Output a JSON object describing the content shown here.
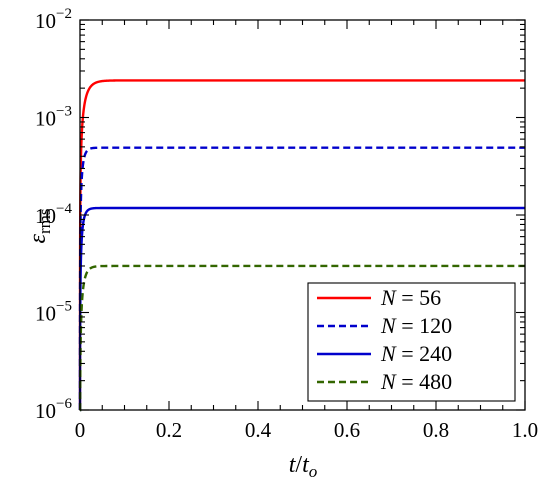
{
  "chart_data": {
    "type": "line",
    "title": "",
    "xlabel": {
      "main": "t",
      "slash": "/",
      "denom": "t",
      "denom_sub": "o"
    },
    "ylabel": {
      "main": "ε",
      "sub": "rms"
    },
    "xlim": [
      0,
      1.0
    ],
    "ylim": [
      1e-06,
      0.01
    ],
    "yscale": "log",
    "grid": false,
    "legend_position": "bottom-right",
    "x_ticks": [
      "0",
      "0.2",
      "0.4",
      "0.6",
      "0.8",
      "1.0"
    ],
    "y_ticks": [
      {
        "base": "10",
        "exp": "−6"
      },
      {
        "base": "10",
        "exp": "−5"
      },
      {
        "base": "10",
        "exp": "−4"
      },
      {
        "base": "10",
        "exp": "−3"
      },
      {
        "base": "10",
        "exp": "−2"
      }
    ],
    "series": [
      {
        "name": "56",
        "label_prefix": "N",
        "label_eq": " = ",
        "color": "#ff0000",
        "dash": "solid",
        "plateau": 0.0024,
        "rise_tau": 0.012
      },
      {
        "name": "120",
        "label_prefix": "N",
        "label_eq": " = ",
        "color": "#0000cc",
        "dash": "dashed",
        "plateau": 0.00049,
        "rise_tau": 0.006
      },
      {
        "name": "240",
        "label_prefix": "N",
        "label_eq": " = ",
        "color": "#0000cc",
        "dash": "solid",
        "plateau": 0.000118,
        "rise_tau": 0.006
      },
      {
        "name": "480",
        "label_prefix": "N",
        "label_eq": " = ",
        "color": "#336600",
        "dash": "dashed",
        "plateau": 3e-05,
        "rise_tau": 0.008
      }
    ]
  }
}
